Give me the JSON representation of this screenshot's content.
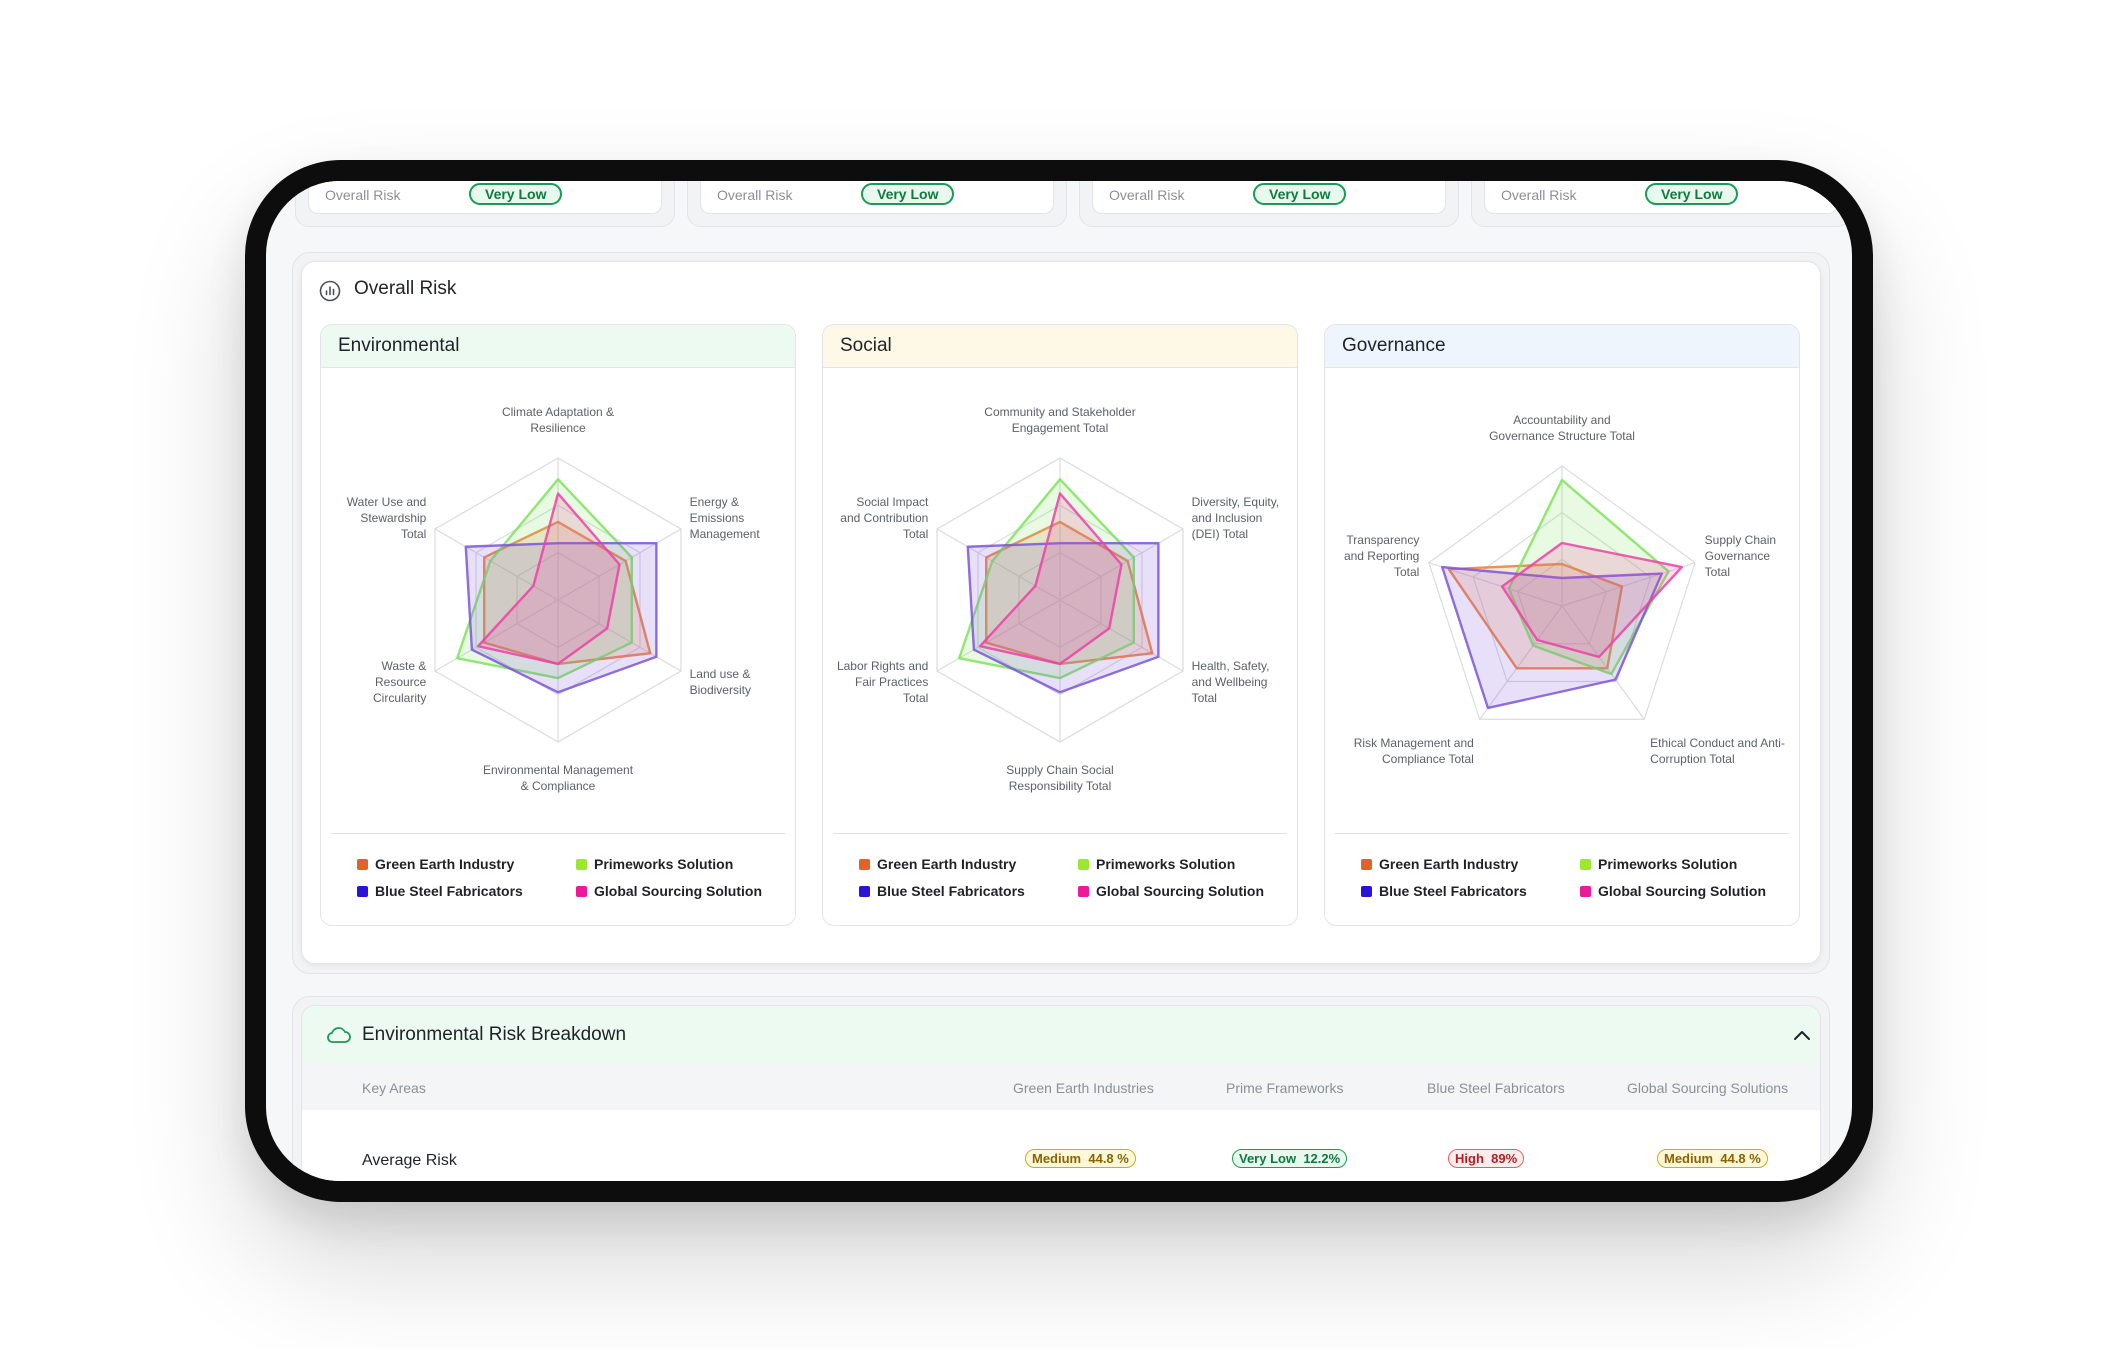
{
  "summary_cards": [
    {
      "label": "Overall Risk",
      "rating": "Very Low"
    },
    {
      "label": "Overall Risk",
      "rating": "Very Low"
    },
    {
      "label": "Overall Risk",
      "rating": "Very Low"
    },
    {
      "label": "Overall Risk",
      "rating": "Very Low"
    }
  ],
  "overall_risk": {
    "title": "Overall Risk",
    "icon": "chart-circle-icon"
  },
  "chart_data": [
    {
      "type": "radar",
      "title": "Environmental",
      "axes": [
        "Climate Adaptation & Resilience",
        "Energy & Emissions Management",
        "Land use & Biodiversity",
        "Environmental Management & Compliance",
        "Waste & Resource Circularity",
        "Water Use and Stewardship Total"
      ],
      "axis_lines": [
        [
          "Climate Adaptation &",
          "Resilience"
        ],
        [
          "Energy &",
          "Emissions",
          "Management"
        ],
        [
          "Land use &",
          "Biodiversity"
        ],
        [
          "Environmental Management",
          "& Compliance"
        ],
        [
          "Waste &",
          "Resource",
          "Circularity"
        ],
        [
          "Water Use and",
          "Stewardship",
          "Total"
        ]
      ],
      "range": [
        0,
        100
      ],
      "series": [
        {
          "name": "Green Earth Industry",
          "color": "#f07a35",
          "values": [
            55,
            55,
            75,
            45,
            60,
            60
          ]
        },
        {
          "name": "Primeworks Solution",
          "color": "#7ee35a",
          "values": [
            85,
            60,
            60,
            55,
            82,
            55
          ]
        },
        {
          "name": "Blue Steel Fabricators",
          "color": "#7b55d9",
          "values": [
            40,
            80,
            80,
            65,
            70,
            75
          ]
        },
        {
          "name": "Global Sourcing Solution",
          "color": "#ee3fa6",
          "values": [
            75,
            50,
            40,
            45,
            65,
            20
          ]
        }
      ]
    },
    {
      "type": "radar",
      "title": "Social",
      "axes": [
        "Community and Stakeholder Engagement Total",
        "Diversity, Equity, and Inclusion (DEI) Total",
        "Health, Safety, and Wellbeing Total",
        "Supply Chain Social Responsibility Total",
        "Labor Rights and Fair Practices Total",
        "Social Impact and Contribution Total"
      ],
      "axis_lines": [
        [
          "Community and Stakeholder",
          "Engagement Total"
        ],
        [
          "Diversity, Equity,",
          "and Inclusion",
          "(DEI) Total"
        ],
        [
          "Health, Safety,",
          "and Wellbeing",
          "Total"
        ],
        [
          "Supply Chain Social",
          "Responsibility Total"
        ],
        [
          "Labor Rights and",
          "Fair Practices",
          "Total"
        ],
        [
          "Social Impact",
          "and Contribution",
          "Total"
        ]
      ],
      "range": [
        0,
        100
      ],
      "series": [
        {
          "name": "Green Earth Industry",
          "color": "#f07a35",
          "values": [
            55,
            55,
            75,
            45,
            60,
            60
          ]
        },
        {
          "name": "Primeworks Solution",
          "color": "#7ee35a",
          "values": [
            85,
            60,
            60,
            55,
            82,
            55
          ]
        },
        {
          "name": "Blue Steel Fabricators",
          "color": "#7b55d9",
          "values": [
            40,
            80,
            80,
            65,
            70,
            75
          ]
        },
        {
          "name": "Global Sourcing Solution",
          "color": "#ee3fa6",
          "values": [
            75,
            50,
            40,
            45,
            65,
            20
          ]
        }
      ]
    },
    {
      "type": "radar",
      "title": "Governance",
      "axes": [
        "Accountability and Governance Structure Total",
        "Supply Chain Governance Total",
        "Ethical Conduct and Anti-Corruption Total",
        "Risk Management and Compliance Total",
        "Transparency and Reporting Total"
      ],
      "axis_lines": [
        [
          "Accountability and",
          "Governance Structure Total"
        ],
        [
          "Supply Chain",
          "Governance",
          "Total"
        ],
        [
          "Ethical Conduct and Anti-",
          "Corruption Total"
        ],
        [
          "Risk Management and",
          "Compliance Total"
        ],
        [
          "Transparency",
          "and Reporting",
          "Total"
        ]
      ],
      "range": [
        0,
        100
      ],
      "series": [
        {
          "name": "Green Earth Industry",
          "color": "#f07a35",
          "values": [
            30,
            45,
            55,
            55,
            85
          ]
        },
        {
          "name": "Primeworks Solution",
          "color": "#7ee35a",
          "values": [
            90,
            80,
            60,
            35,
            40
          ]
        },
        {
          "name": "Blue Steel Fabricators",
          "color": "#7b55d9",
          "values": [
            20,
            75,
            65,
            90,
            90
          ]
        },
        {
          "name": "Global Sourcing Solution",
          "color": "#ee3fa6",
          "values": [
            45,
            90,
            45,
            30,
            45
          ]
        }
      ]
    }
  ],
  "legend": [
    {
      "name": "Green Earth Industry",
      "color": "#e0642a"
    },
    {
      "name": "Primeworks Solution",
      "color": "#9be82f"
    },
    {
      "name": "Blue Steel Fabricators",
      "color": "#2a12d6"
    },
    {
      "name": "Global Sourcing Solution",
      "color": "#ec1a9a"
    }
  ],
  "breakdown": {
    "title": "Environmental Risk Breakdown",
    "icon": "cloud-icon",
    "collapse_icon": "chevron-up-icon",
    "columns": [
      "Key Areas",
      "Green Earth Industries",
      "Prime Frameworks",
      "Blue Steel Fabricators",
      "Global Sourcing Solutions"
    ],
    "rows": [
      {
        "label": "Average Risk",
        "cells": [
          {
            "level": "Medium",
            "value": "44.8 %",
            "tone": "med"
          },
          {
            "level": "Very Low",
            "value": "12.2%",
            "tone": "vlow"
          },
          {
            "level": "High",
            "value": "89%",
            "tone": "high"
          },
          {
            "level": "Medium",
            "value": "44.8 %",
            "tone": "med"
          }
        ]
      }
    ]
  }
}
